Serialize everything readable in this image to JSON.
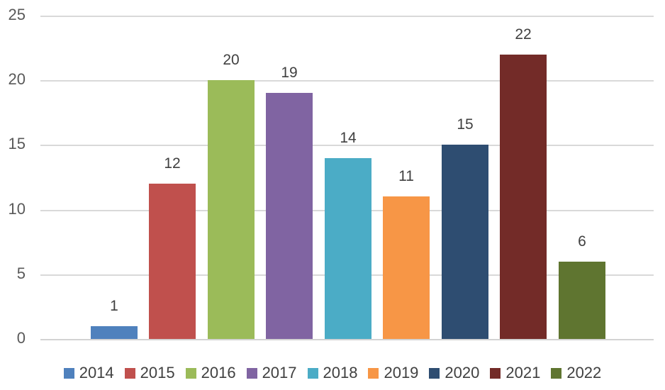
{
  "chart_data": {
    "type": "bar",
    "title": "",
    "xlabel": "",
    "ylabel": "",
    "categories": [
      "2014",
      "2015",
      "2016",
      "2017",
      "2018",
      "2019",
      "2020",
      "2021",
      "2022"
    ],
    "values": [
      1,
      12,
      20,
      19,
      14,
      11,
      15,
      22,
      6
    ],
    "colors": [
      "#4F81BD",
      "#C0504D",
      "#9BBB59",
      "#8064A2",
      "#4BACC6",
      "#F79646",
      "#2E4D71",
      "#732B28",
      "#5F7530"
    ],
    "ylim": [
      0,
      25
    ],
    "yticks": [
      0,
      5,
      10,
      15,
      20,
      25
    ],
    "grid": true,
    "data_labels": true,
    "legend_position": "bottom",
    "gridline_color": "#D9D9D9",
    "axis_line_color": "#D3D3D3",
    "tick_label_color": "#595959",
    "data_label_color": "#404040",
    "legend_text_color": "#404040",
    "background": "#FFFFFF"
  }
}
